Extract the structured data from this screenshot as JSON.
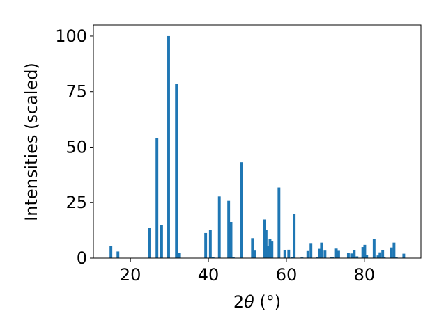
{
  "chart_data": {
    "type": "bar",
    "title": "",
    "xlabel_main": "2",
    "xlabel_symbol": "θ",
    "xlabel_unit": " (°)",
    "ylabel": "Intensities (scaled)",
    "xlim": [
      10.5,
      94.5
    ],
    "ylim": [
      0,
      105
    ],
    "bar_width": 0.7,
    "bar_color": "#1f77b4",
    "grid": false,
    "legend": "none",
    "x_ticks": [
      20,
      40,
      60,
      80
    ],
    "y_ticks": [
      0,
      25,
      50,
      75,
      100
    ],
    "x": [
      15.0,
      16.8,
      24.8,
      26.8,
      28.0,
      29.8,
      31.8,
      32.6,
      39.3,
      40.5,
      41.2,
      42.8,
      45.2,
      45.8,
      46.4,
      48.5,
      51.3,
      51.9,
      54.3,
      54.8,
      55.3,
      55.8,
      56.3,
      58.1,
      59.6,
      60.6,
      61.6,
      62.0,
      64.0,
      65.5,
      66.3,
      67.9,
      68.5,
      69.0,
      69.9,
      71.5,
      72.0,
      72.8,
      73.4,
      75.9,
      76.7,
      77.4,
      78.1,
      79.6,
      80.1,
      80.6,
      82.5,
      83.5,
      84.0,
      84.7,
      85.1,
      86.9,
      87.6,
      88.2,
      90.1
    ],
    "values": [
      5.5,
      3.0,
      13.7,
      54.2,
      15.0,
      100.0,
      78.5,
      2.5,
      11.3,
      12.8,
      0.5,
      27.8,
      25.8,
      16.3,
      0.5,
      43.2,
      9.0,
      3.4,
      17.4,
      12.8,
      5.5,
      8.5,
      7.5,
      31.8,
      3.6,
      3.8,
      0.5,
      19.8,
      0.3,
      3.2,
      6.8,
      0.5,
      4.2,
      7.0,
      3.4,
      0.6,
      0.5,
      4.3,
      3.3,
      2.3,
      2.1,
      3.7,
      0.8,
      5.0,
      6.0,
      1.5,
      8.7,
      1.2,
      2.6,
      3.5,
      0.4,
      4.8,
      7.0,
      0.3,
      2.0
    ]
  }
}
